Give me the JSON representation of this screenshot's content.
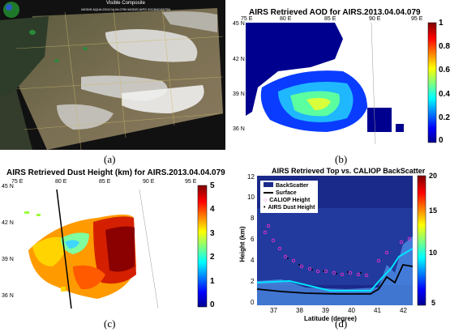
{
  "panel_a": {
    "caption": "(a)",
    "header_line1": "Visible Composite",
    "header_line2": "MODIS AQUA 2013.04.04.0750 MODIS AIRS 20130404.0750"
  },
  "panel_b": {
    "title": "AIRS Retrieved AOD for AIRS.2013.04.04.079",
    "caption": "(b)",
    "lon_ticks": [
      "75 E",
      "80 E",
      "85 E",
      "90 E",
      "95 E"
    ],
    "lat_ticks": [
      "45 N",
      "42 N",
      "39 N",
      "36 N"
    ],
    "colorbar_ticks": [
      "1",
      "0.8",
      "0.6",
      "0.4",
      "0.2",
      "0"
    ]
  },
  "panel_c": {
    "title": "AIRS Retrieved Dust Height (km) for AIRS.2013.04.04.079",
    "caption": "(c)",
    "lon_ticks": [
      "75 E",
      "80 E",
      "85 E",
      "90 E",
      "95 E"
    ],
    "lat_ticks": [
      "45 N",
      "42 N",
      "39 N",
      "36 N"
    ],
    "colorbar_ticks": [
      "5",
      "4",
      "3",
      "2",
      "1",
      "0"
    ]
  },
  "panel_d": {
    "title": "AIRS Retrieved Top vs. CALIOP BackScatter",
    "caption": "(d)",
    "xlabel": "Latitude (degree)",
    "ylabel": "Height (km)",
    "x_ticks": [
      "37",
      "38",
      "39",
      "40",
      "41",
      "42"
    ],
    "y_ticks": [
      "12",
      "10",
      "8",
      "6",
      "4",
      "2",
      "0"
    ],
    "colorbar_ticks": [
      "20",
      "15",
      "10",
      "5"
    ],
    "legend": [
      "BackScatter",
      "Surface",
      "CALIOP Height",
      "AIRS Dust Height"
    ]
  },
  "colors": {
    "ocean_blue": "#1a2a8a",
    "dust_red": "#8b0000",
    "jet_blue": "#00008f",
    "jet_red": "#800000"
  }
}
